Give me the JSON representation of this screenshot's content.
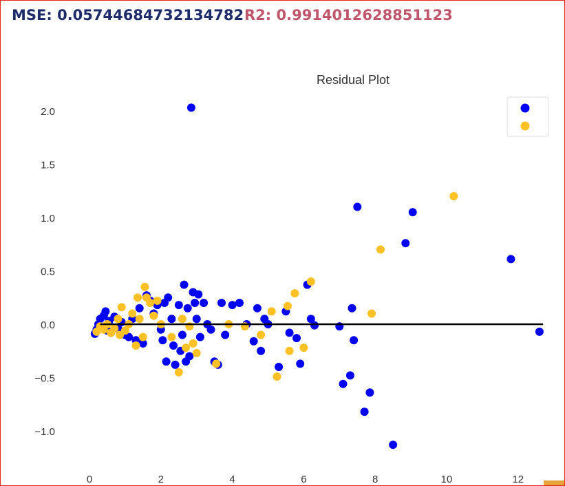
{
  "header": {
    "mse_text": "MSE: 0.05744684732134782",
    "r2_text": "R2: 0.9914012628851123",
    "mse_color": "#1d2b6b",
    "r2_color": "#c0566b"
  },
  "chart_data": {
    "type": "scatter",
    "title": "Residual Plot",
    "xlabel": "",
    "ylabel": "",
    "xlim": [
      -0.5,
      12.8
    ],
    "ylim": [
      -1.3,
      2.2
    ],
    "x_ticks": [
      0,
      2,
      4,
      6,
      8,
      10,
      12
    ],
    "y_ticks": [
      -1.0,
      -0.5,
      0.0,
      0.5,
      1.0,
      1.5,
      2.0
    ],
    "y_tick_labels": [
      "−1.0",
      "−0.5",
      "0.0",
      "0.5",
      "1.0",
      "1.5",
      "2.0"
    ],
    "grid": false,
    "legend": "top-right",
    "hline": {
      "y": 0,
      "x": [
        0.3,
        12.7
      ],
      "color": "#000000"
    },
    "series": [
      {
        "color": "#0000f5",
        "points": [
          [
            0.15,
            -0.09
          ],
          [
            0.2,
            -0.05
          ],
          [
            0.25,
            0.0
          ],
          [
            0.3,
            0.05
          ],
          [
            0.35,
            -0.03
          ],
          [
            0.4,
            0.08
          ],
          [
            0.45,
            0.12
          ],
          [
            0.5,
            -0.06
          ],
          [
            0.55,
            0.03
          ],
          [
            0.6,
            -0.08
          ],
          [
            0.7,
            0.07
          ],
          [
            0.8,
            -0.04
          ],
          [
            0.9,
            0.02
          ],
          [
            1.0,
            -0.1
          ],
          [
            1.1,
            -0.12
          ],
          [
            1.2,
            0.05
          ],
          [
            1.3,
            -0.15
          ],
          [
            1.4,
            0.15
          ],
          [
            1.5,
            -0.18
          ],
          [
            1.6,
            0.27
          ],
          [
            1.7,
            0.22
          ],
          [
            1.8,
            0.1
          ],
          [
            1.9,
            0.18
          ],
          [
            2.0,
            -0.05
          ],
          [
            2.05,
            -0.15
          ],
          [
            2.1,
            0.2
          ],
          [
            2.15,
            -0.35
          ],
          [
            2.2,
            0.25
          ],
          [
            2.3,
            0.05
          ],
          [
            2.35,
            -0.2
          ],
          [
            2.4,
            -0.38
          ],
          [
            2.5,
            0.18
          ],
          [
            2.55,
            -0.25
          ],
          [
            2.6,
            -0.1
          ],
          [
            2.65,
            0.37
          ],
          [
            2.7,
            -0.35
          ],
          [
            2.75,
            0.15
          ],
          [
            2.8,
            -0.3
          ],
          [
            2.85,
            2.03
          ],
          [
            2.9,
            0.3
          ],
          [
            2.95,
            0.2
          ],
          [
            3.0,
            0.05
          ],
          [
            3.05,
            0.28
          ],
          [
            3.1,
            -0.12
          ],
          [
            3.2,
            0.2
          ],
          [
            3.3,
            0.0
          ],
          [
            3.4,
            -0.05
          ],
          [
            3.5,
            -0.35
          ],
          [
            3.6,
            -0.38
          ],
          [
            3.7,
            0.2
          ],
          [
            3.8,
            -0.1
          ],
          [
            4.0,
            0.18
          ],
          [
            4.2,
            0.2
          ],
          [
            4.4,
            0.0
          ],
          [
            4.6,
            -0.16
          ],
          [
            4.7,
            0.15
          ],
          [
            4.8,
            -0.25
          ],
          [
            4.9,
            0.05
          ],
          [
            5.0,
            0.0
          ],
          [
            5.3,
            -0.4
          ],
          [
            5.5,
            0.12
          ],
          [
            5.6,
            -0.08
          ],
          [
            5.8,
            -0.13
          ],
          [
            5.9,
            -0.37
          ],
          [
            6.1,
            0.37
          ],
          [
            6.2,
            0.05
          ],
          [
            6.3,
            -0.01
          ],
          [
            7.0,
            -0.02
          ],
          [
            7.1,
            -0.56
          ],
          [
            7.3,
            -0.48
          ],
          [
            7.35,
            0.15
          ],
          [
            7.4,
            -0.15
          ],
          [
            7.5,
            1.1
          ],
          [
            7.7,
            -0.82
          ],
          [
            7.85,
            -0.64
          ],
          [
            8.5,
            -1.13
          ],
          [
            8.85,
            0.76
          ],
          [
            9.05,
            1.05
          ],
          [
            11.8,
            0.61
          ],
          [
            12.6,
            -0.07
          ]
        ]
      },
      {
        "color": "#ffc125",
        "points": [
          [
            0.2,
            -0.07
          ],
          [
            0.3,
            -0.02
          ],
          [
            0.4,
            -0.05
          ],
          [
            0.5,
            0.0
          ],
          [
            0.6,
            -0.08
          ],
          [
            0.7,
            -0.04
          ],
          [
            0.8,
            0.05
          ],
          [
            0.85,
            -0.1
          ],
          [
            0.9,
            0.16
          ],
          [
            1.0,
            -0.06
          ],
          [
            1.1,
            0.0
          ],
          [
            1.2,
            0.1
          ],
          [
            1.3,
            -0.2
          ],
          [
            1.35,
            0.25
          ],
          [
            1.4,
            0.05
          ],
          [
            1.5,
            -0.12
          ],
          [
            1.55,
            0.35
          ],
          [
            1.6,
            0.25
          ],
          [
            1.7,
            0.2
          ],
          [
            1.8,
            0.08
          ],
          [
            1.9,
            0.22
          ],
          [
            2.0,
            0.0
          ],
          [
            2.3,
            -0.12
          ],
          [
            2.5,
            -0.45
          ],
          [
            2.6,
            0.05
          ],
          [
            2.7,
            -0.22
          ],
          [
            2.8,
            -0.02
          ],
          [
            2.9,
            -0.18
          ],
          [
            3.0,
            -0.27
          ],
          [
            3.55,
            -0.37
          ],
          [
            3.9,
            0.0
          ],
          [
            4.35,
            -0.02
          ],
          [
            4.8,
            -0.1
          ],
          [
            5.1,
            0.12
          ],
          [
            5.25,
            -0.49
          ],
          [
            5.55,
            0.17
          ],
          [
            5.6,
            -0.25
          ],
          [
            5.75,
            0.29
          ],
          [
            6.0,
            -0.22
          ],
          [
            6.2,
            0.4
          ],
          [
            7.9,
            0.1
          ],
          [
            8.15,
            0.7
          ],
          [
            10.2,
            1.2
          ]
        ]
      }
    ]
  }
}
